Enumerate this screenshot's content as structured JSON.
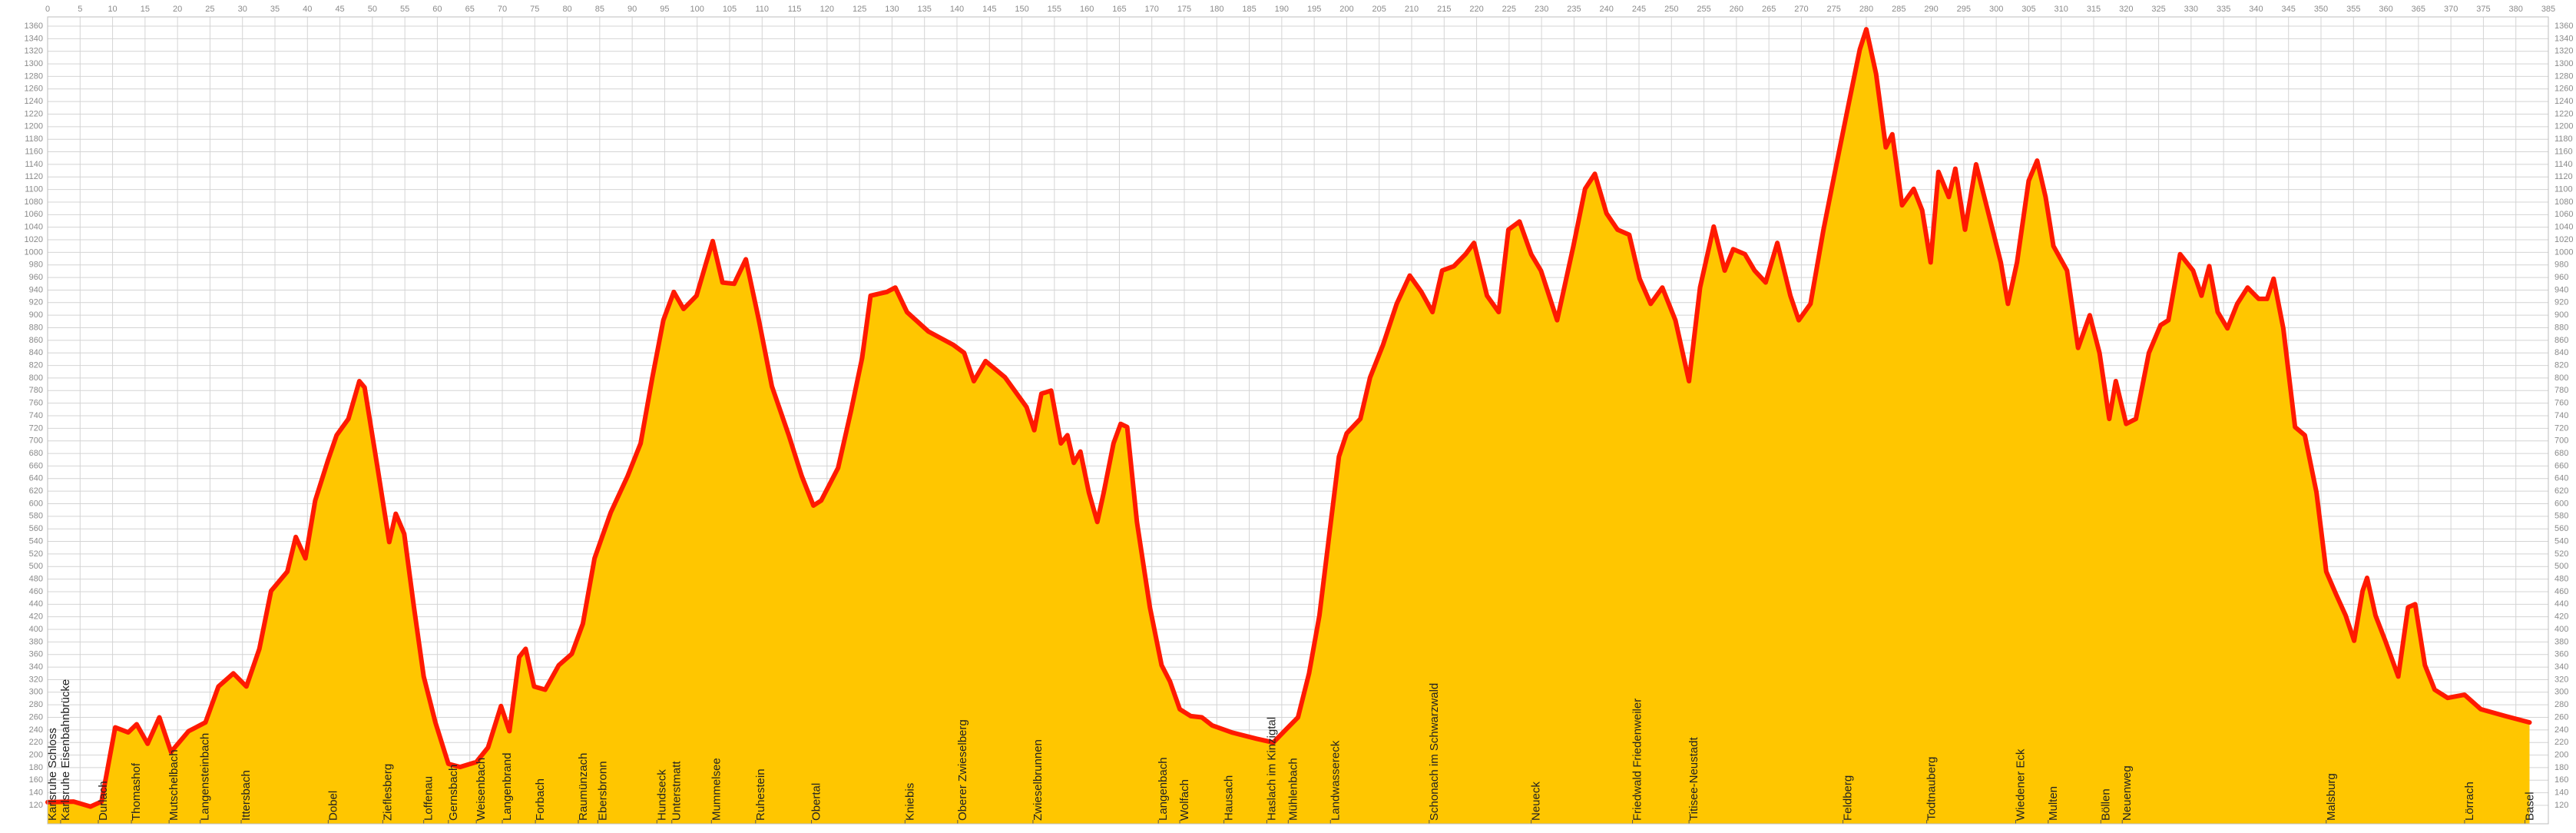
{
  "chart_data": {
    "type": "area",
    "fill_color": "#ffc600",
    "line_color": "#ff1a00",
    "grid": true,
    "xlim": [
      0,
      385
    ],
    "ylim": [
      120,
      1360
    ],
    "xticks": [
      0,
      5,
      10,
      15,
      20,
      25,
      30,
      35,
      40,
      45,
      50,
      55,
      60,
      65,
      70,
      75,
      80,
      85,
      90,
      95,
      100,
      105,
      110,
      115,
      120,
      125,
      130,
      135,
      140,
      145,
      150,
      155,
      160,
      165,
      170,
      175,
      180,
      185,
      190,
      195,
      200,
      205,
      210,
      215,
      220,
      225,
      230,
      235,
      240,
      245,
      250,
      255,
      260,
      265,
      270,
      275,
      280,
      285,
      290,
      295,
      300,
      305,
      310,
      315,
      320,
      325,
      330,
      335,
      340,
      345,
      350,
      355,
      360,
      365,
      370,
      375,
      380,
      385
    ],
    "yticks": [
      120,
      140,
      160,
      180,
      200,
      220,
      240,
      260,
      280,
      300,
      320,
      340,
      360,
      380,
      400,
      420,
      440,
      460,
      480,
      500,
      520,
      540,
      560,
      580,
      600,
      620,
      640,
      660,
      680,
      700,
      720,
      740,
      760,
      780,
      800,
      820,
      840,
      860,
      880,
      900,
      920,
      940,
      960,
      980,
      1000,
      1020,
      1040,
      1060,
      1080,
      1100,
      1120,
      1140,
      1160,
      1180,
      1200,
      1220,
      1240,
      1260,
      1280,
      1300,
      1320,
      1340,
      1360
    ],
    "x": [
      0,
      4,
      6.6,
      8.3,
      10.4,
      12.4,
      13.7,
      15.4,
      17.2,
      19,
      21.7,
      24.3,
      26.3,
      28.6,
      30.6,
      32.6,
      34.4,
      36.9,
      38.2,
      39.7,
      41.2,
      43.2,
      44.5,
      46.3,
      48,
      48.8,
      50.8,
      52.6,
      53.6,
      54.9,
      56.4,
      57.9,
      59.7,
      61.7,
      63.5,
      66,
      67.8,
      69.8,
      71.1,
      72.6,
      73.6,
      74.9,
      76.6,
      78.7,
      80.7,
      82.4,
      84.2,
      86.7,
      89.3,
      91.3,
      93.1,
      94.8,
      96.4,
      97.9,
      99.9,
      101.4,
      102.4,
      103.9,
      105.7,
      107.5,
      109.5,
      111.5,
      114.1,
      116.1,
      117.9,
      119.1,
      121.7,
      123.7,
      125.4,
      126.7,
      129.2,
      130.5,
      132.3,
      135.6,
      139.4,
      141.1,
      142.6,
      144.4,
      147.4,
      150.7,
      151.9,
      153,
      154.5,
      156,
      157,
      158,
      159,
      160.3,
      161.6,
      162.6,
      164.1,
      165.2,
      166.2,
      167.7,
      169.7,
      171.5,
      172.8,
      174.3,
      176,
      177.7,
      179.3,
      182.3,
      186.1,
      188.7,
      190.4,
      192.5,
      194.2,
      195.8,
      197.5,
      198.8,
      200,
      202.1,
      203.6,
      205.6,
      207.7,
      209.7,
      211.5,
      213.2,
      214.7,
      216.5,
      218.3,
      219.6,
      221.6,
      223.4,
      224.9,
      226.6,
      228.4,
      229.9,
      232.4,
      234.9,
      236.7,
      238.2,
      240,
      241.7,
      243.5,
      245.1,
      246.8,
      248.6,
      250.6,
      252.7,
      254.4,
      256.5,
      258.2,
      259.5,
      261.3,
      262.8,
      264.5,
      266.3,
      268.3,
      269.6,
      271.4,
      273.4,
      275.4,
      277.2,
      279,
      280,
      281.5,
      283,
      284,
      285.5,
      287.3,
      288.6,
      289.9,
      291.1,
      292.7,
      293.7,
      295.2,
      296.9,
      298.8,
      300.7,
      301.8,
      303.2,
      305,
      306.3,
      307.6,
      308.8,
      310.9,
      312.6,
      314.4,
      315.9,
      317.4,
      318.4,
      320,
      321.5,
      323.5,
      325.3,
      326.5,
      328.3,
      330.3,
      331.6,
      332.8,
      334.1,
      335.6,
      337.1,
      338.7,
      340.4,
      341.7,
      342.7,
      344.2,
      346,
      347.5,
      349.3,
      350.8,
      352.3,
      353.8,
      355.1,
      356.4,
      357.1,
      358.4,
      359.9,
      361.9,
      363.4,
      364.5,
      366,
      367.5,
      369.5,
      372.1,
      374.6,
      378.4,
      382.1
    ],
    "values": [
      125,
      126,
      118,
      126,
      244,
      236,
      249,
      218,
      260,
      205,
      238,
      252,
      309,
      330,
      309,
      369,
      461,
      492,
      547,
      513,
      605,
      670,
      709,
      735,
      795,
      785,
      657,
      539,
      584,
      552,
      435,
      325,
      252,
      186,
      181,
      189,
      212,
      278,
      238,
      356,
      369,
      309,
      304,
      343,
      361,
      409,
      513,
      586,
      644,
      696,
      801,
      892,
      937,
      910,
      931,
      984,
      1018,
      952,
      950,
      989,
      892,
      787,
      709,
      644,
      597,
      605,
      657,
      748,
      832,
      931,
      937,
      944,
      905,
      874,
      853,
      840,
      795,
      827,
      801,
      754,
      717,
      775,
      780,
      696,
      709,
      665,
      683,
      618,
      571,
      618,
      696,
      727,
      722,
      571,
      435,
      343,
      317,
      273,
      262,
      260,
      247,
      236,
      226,
      220,
      238,
      260,
      330,
      422,
      566,
      675,
      712,
      735,
      801,
      853,
      918,
      963,
      937,
      905,
      971,
      978,
      997,
      1015,
      931,
      905,
      1036,
      1049,
      997,
      971,
      892,
      1010,
      1101,
      1125,
      1062,
      1036,
      1028,
      958,
      918,
      944,
      892,
      795,
      944,
      1041,
      971,
      1005,
      997,
      971,
      952,
      1015,
      931,
      892,
      918,
      1036,
      1140,
      1232,
      1323,
      1355,
      1284,
      1167,
      1188,
      1075,
      1101,
      1067,
      984,
      1128,
      1088,
      1133,
      1036,
      1140,
      1062,
      984,
      918,
      984,
      1114,
      1146,
      1088,
      1010,
      971,
      848,
      900,
      840,
      735,
      795,
      727,
      735,
      840,
      884,
      892,
      997,
      971,
      931,
      978,
      905,
      879,
      918,
      944,
      926,
      926,
      958,
      879,
      722,
      709,
      618,
      492,
      456,
      422,
      382,
      461,
      482,
      422,
      382,
      325,
      435,
      440,
      343,
      304,
      291,
      296,
      273,
      262,
      252
    ],
    "places": [
      {
        "name": "Karlsruhe Schloss",
        "km": 0
      },
      {
        "name": "Karlsruhe Eisenbahnbrücke",
        "km": 2
      },
      {
        "name": "Durlach",
        "km": 7.8
      },
      {
        "name": "Thomashof",
        "km": 12.9
      },
      {
        "name": "Mutschelbach",
        "km": 18.7
      },
      {
        "name": "Langensteinbach",
        "km": 23.5
      },
      {
        "name": "Ittersbach",
        "km": 29.8
      },
      {
        "name": "Dobel",
        "km": 43.2
      },
      {
        "name": "Zieflesberg",
        "km": 51.6
      },
      {
        "name": "Loffenau",
        "km": 57.9
      },
      {
        "name": "Gernsbach",
        "km": 61.7
      },
      {
        "name": "Weisenbach",
        "km": 66
      },
      {
        "name": "Langenbrand",
        "km": 70
      },
      {
        "name": "Forbach",
        "km": 75.1
      },
      {
        "name": "Raumünzach",
        "km": 81.7
      },
      {
        "name": "Ebersbronn",
        "km": 84.7
      },
      {
        "name": "Hundseck",
        "km": 93.8
      },
      {
        "name": "Unterstmatt",
        "km": 96.1
      },
      {
        "name": "Mummelsee",
        "km": 102.2
      },
      {
        "name": "Ruhestein",
        "km": 109
      },
      {
        "name": "Obertal",
        "km": 117.6
      },
      {
        "name": "Kniebis",
        "km": 132
      },
      {
        "name": "Oberer Zwieselberg",
        "km": 140.1
      },
      {
        "name": "Zwieselbrunnen",
        "km": 151.7
      },
      {
        "name": "Langenbach",
        "km": 171
      },
      {
        "name": "Wolfach",
        "km": 174.3
      },
      {
        "name": "Hausach",
        "km": 181.1
      },
      {
        "name": "Haslach im Kinzigtal",
        "km": 187.7
      },
      {
        "name": "Mühlenbach",
        "km": 191
      },
      {
        "name": "Landwassereck",
        "km": 197.5
      },
      {
        "name": "Schonach im Schwarzwald",
        "km": 212.7
      },
      {
        "name": "Neueck",
        "km": 228.4
      },
      {
        "name": "Friedwald Friedenweiler",
        "km": 244
      },
      {
        "name": "Titisee-Neustadt",
        "km": 252.7
      },
      {
        "name": "Feldberg",
        "km": 276.4
      },
      {
        "name": "Todtnauberg",
        "km": 289.3
      },
      {
        "name": "Wiedener Eck",
        "km": 303
      },
      {
        "name": "Multen",
        "km": 308
      },
      {
        "name": "Böllen",
        "km": 316.1
      },
      {
        "name": "Neuenweg",
        "km": 319.4
      },
      {
        "name": "Malsburg",
        "km": 350.8
      },
      {
        "name": "Lörrach",
        "km": 372.1
      },
      {
        "name": "Basel",
        "km": 381.4
      }
    ]
  }
}
